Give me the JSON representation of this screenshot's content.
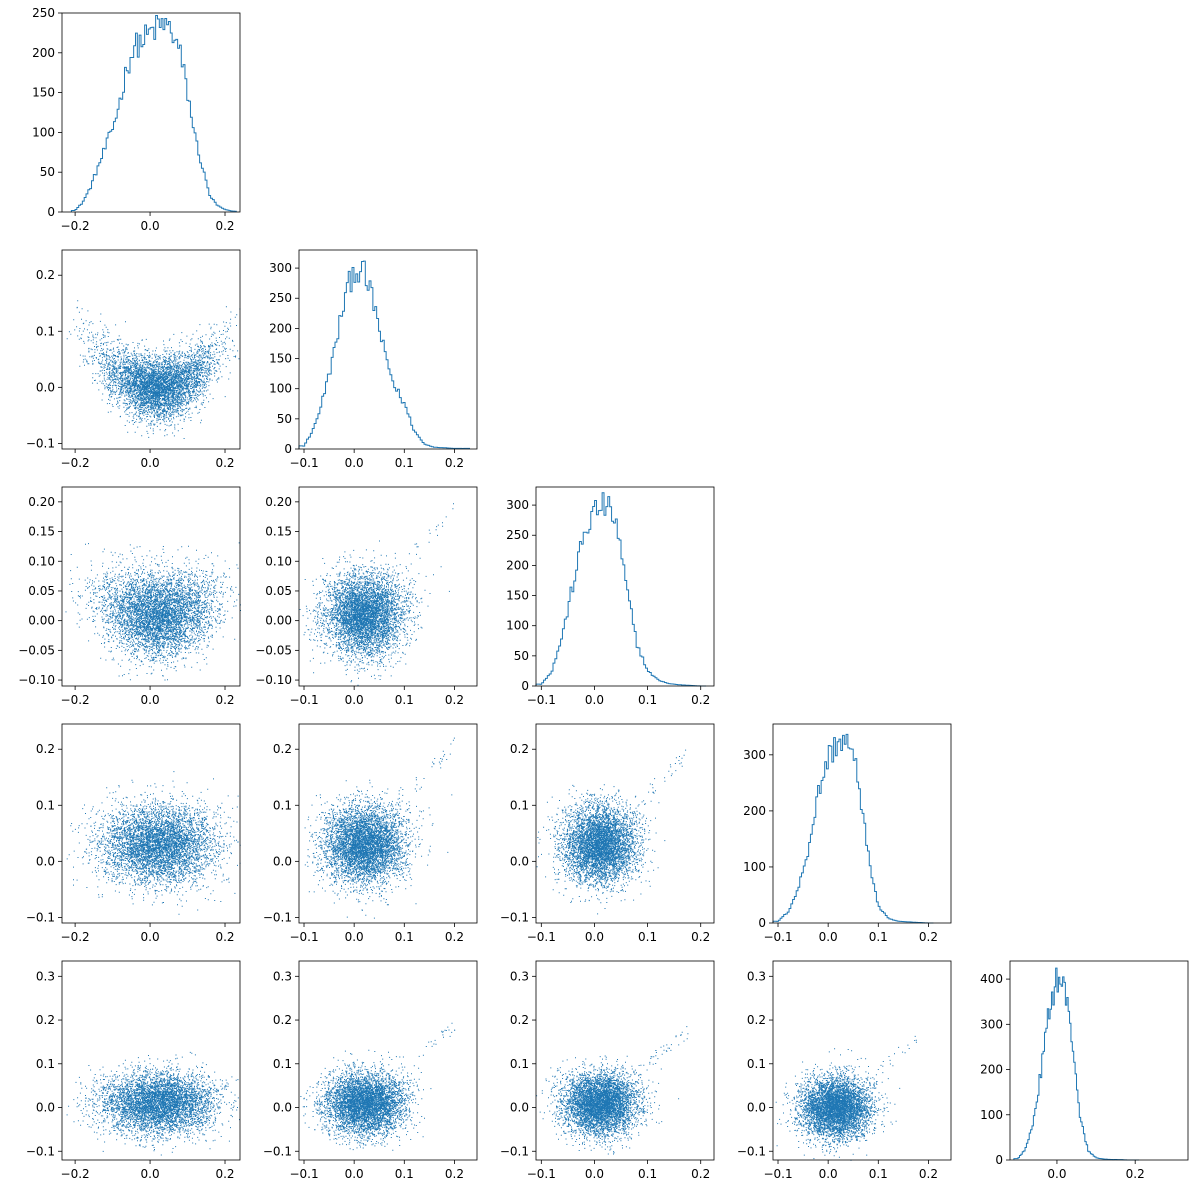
{
  "chart_data": {
    "type": "corner_plot",
    "n_samples": 10000,
    "color": "#1f77b4",
    "dimensions": [
      {
        "id": 0,
        "xlim": [
          -0.235,
          0.24
        ],
        "xticks": [
          "-0.2",
          "0.0",
          "0.2"
        ],
        "xtick_values": [
          -0.2,
          0.0,
          0.2
        ]
      },
      {
        "id": 1,
        "xlim": [
          -0.11,
          0.245
        ],
        "xticks": [
          "-0.1",
          "0.0",
          "0.1",
          "0.2"
        ],
        "xtick_values": [
          -0.1,
          0.0,
          0.1,
          0.2
        ]
      },
      {
        "id": 2,
        "xlim": [
          -0.11,
          0.225
        ],
        "xticks": [
          "-0.1",
          "0.0",
          "0.1",
          "0.2"
        ],
        "xtick_values": [
          -0.1,
          0.0,
          0.1,
          0.2
        ]
      },
      {
        "id": 3,
        "xlim": [
          -0.11,
          0.245
        ],
        "xticks": [
          "-0.1",
          "0.0",
          "0.1",
          "0.2"
        ],
        "xtick_values": [
          -0.1,
          0.0,
          0.1,
          0.2
        ]
      },
      {
        "id": 4,
        "xlim": [
          -0.12,
          0.335
        ],
        "xticks": [
          "0.0",
          "0.2"
        ],
        "xtick_values": [
          0.0,
          0.2
        ]
      }
    ],
    "row_ylims": [
      {
        "row": 1,
        "ylim": [
          -0.11,
          0.245
        ],
        "yticks": [
          "-0.1",
          "0.0",
          "0.1",
          "0.2"
        ],
        "ytick_values": [
          -0.1,
          0.0,
          0.1,
          0.2
        ]
      },
      {
        "row": 2,
        "ylim": [
          -0.11,
          0.225
        ],
        "yticks": [
          "-0.10",
          "-0.05",
          "0.00",
          "0.05",
          "0.10",
          "0.15",
          "0.20"
        ],
        "ytick_values": [
          -0.1,
          -0.05,
          0.0,
          0.05,
          0.1,
          0.15,
          0.2
        ]
      },
      {
        "row": 3,
        "ylim": [
          -0.11,
          0.245
        ],
        "yticks": [
          "-0.1",
          "0.0",
          "0.1",
          "0.2"
        ],
        "ytick_values": [
          -0.1,
          0.0,
          0.1,
          0.2
        ]
      },
      {
        "row": 4,
        "ylim": [
          -0.12,
          0.335
        ],
        "yticks": [
          "-0.1",
          "0.0",
          "0.1",
          "0.2",
          "0.3"
        ],
        "ytick_values": [
          -0.1,
          0.0,
          0.1,
          0.2,
          0.3
        ]
      }
    ],
    "histograms": [
      {
        "dim": 0,
        "ylim": [
          0,
          250
        ],
        "yticks": [
          "0",
          "50",
          "100",
          "150",
          "200",
          "250"
        ],
        "ytick_values": [
          0,
          50,
          100,
          150,
          200,
          250
        ],
        "x": [
          -0.2,
          -0.18,
          -0.16,
          -0.14,
          -0.12,
          -0.1,
          -0.08,
          -0.06,
          -0.04,
          -0.02,
          0.0,
          0.02,
          0.04,
          0.06,
          0.08,
          0.1,
          0.12,
          0.14,
          0.16,
          0.18,
          0.2,
          0.22
        ],
        "counts": [
          2,
          12,
          30,
          55,
          80,
          105,
          140,
          185,
          208,
          215,
          225,
          232,
          236,
          225,
          200,
          150,
          95,
          55,
          20,
          8,
          3,
          1
        ]
      },
      {
        "dim": 1,
        "ylim": [
          0,
          330
        ],
        "yticks": [
          "0",
          "50",
          "100",
          "150",
          "200",
          "250",
          "300"
        ],
        "ytick_values": [
          0,
          50,
          100,
          150,
          200,
          250,
          300
        ],
        "x": [
          -0.1,
          -0.08,
          -0.06,
          -0.04,
          -0.02,
          0.0,
          0.02,
          0.04,
          0.06,
          0.08,
          0.1,
          0.12,
          0.14,
          0.16,
          0.18,
          0.2,
          0.22
        ],
        "counts": [
          5,
          35,
          90,
          160,
          245,
          300,
          290,
          240,
          160,
          105,
          75,
          30,
          8,
          3,
          2,
          1,
          1
        ]
      },
      {
        "dim": 2,
        "ylim": [
          0,
          330
        ],
        "yticks": [
          "0",
          "50",
          "100",
          "150",
          "200",
          "250",
          "300"
        ],
        "ytick_values": [
          0,
          50,
          100,
          150,
          200,
          250,
          300
        ],
        "x": [
          -0.1,
          -0.08,
          -0.06,
          -0.04,
          -0.02,
          0.0,
          0.02,
          0.04,
          0.06,
          0.08,
          0.1,
          0.12,
          0.14,
          0.16,
          0.18,
          0.2
        ],
        "counts": [
          3,
          25,
          85,
          170,
          250,
          290,
          300,
          275,
          165,
          70,
          25,
          10,
          4,
          2,
          1,
          0
        ]
      },
      {
        "dim": 3,
        "ylim": [
          0,
          355
        ],
        "yticks": [
          "0",
          "100",
          "200",
          "300"
        ],
        "ytick_values": [
          0,
          100,
          200,
          300
        ],
        "x": [
          -0.1,
          -0.08,
          -0.06,
          -0.04,
          -0.02,
          0.0,
          0.02,
          0.04,
          0.06,
          0.08,
          0.1,
          0.12,
          0.14,
          0.16,
          0.18,
          0.2
        ],
        "counts": [
          3,
          20,
          60,
          130,
          230,
          295,
          325,
          320,
          260,
          120,
          30,
          8,
          3,
          2,
          1,
          0
        ]
      },
      {
        "dim": 4,
        "ylim": [
          0,
          440
        ],
        "yticks": [
          "0",
          "100",
          "200",
          "300",
          "400"
        ],
        "ytick_values": [
          0,
          100,
          200,
          300,
          400
        ],
        "x": [
          -0.1,
          -0.08,
          -0.06,
          -0.04,
          -0.02,
          0.0,
          0.02,
          0.04,
          0.06,
          0.08,
          0.1,
          0.12,
          0.14,
          0.16,
          0.18,
          0.2
        ],
        "counts": [
          3,
          25,
          85,
          200,
          330,
          405,
          380,
          260,
          90,
          20,
          5,
          2,
          1,
          1,
          0,
          0
        ]
      }
    ],
    "scatter_panels": [
      {
        "row": 1,
        "col": 0,
        "shape": "u",
        "a": 2.2,
        "mx": 0.02,
        "sx": 0.075,
        "my": 0.0,
        "sy": 0.028
      },
      {
        "row": 2,
        "col": 0,
        "shape": "u",
        "a": 1.0,
        "mx": 0.02,
        "sx": 0.075,
        "my": 0.01,
        "sy": 0.035
      },
      {
        "row": 2,
        "col": 1,
        "shape": "tail",
        "a": 2.8,
        "mx": 0.02,
        "sx": 0.04,
        "my": 0.01,
        "sy": 0.035
      },
      {
        "row": 3,
        "col": 0,
        "shape": "flat",
        "a": 0.0,
        "mx": 0.02,
        "sx": 0.075,
        "my": 0.03,
        "sy": 0.035
      },
      {
        "row": 3,
        "col": 1,
        "shape": "tail",
        "a": 1.5,
        "mx": 0.02,
        "sx": 0.04,
        "my": 0.03,
        "sy": 0.035
      },
      {
        "row": 3,
        "col": 2,
        "shape": "tail",
        "a": 1.2,
        "mx": 0.01,
        "sx": 0.035,
        "my": 0.03,
        "sy": 0.035
      },
      {
        "row": 4,
        "col": 0,
        "shape": "flat",
        "a": 0.0,
        "mx": 0.02,
        "sx": 0.075,
        "my": 0.01,
        "sy": 0.035
      },
      {
        "row": 4,
        "col": 1,
        "shape": "tail",
        "a": 1.2,
        "mx": 0.02,
        "sx": 0.04,
        "my": 0.01,
        "sy": 0.035
      },
      {
        "row": 4,
        "col": 2,
        "shape": "tail",
        "a": 1.1,
        "mx": 0.01,
        "sx": 0.035,
        "my": 0.01,
        "sy": 0.035
      },
      {
        "row": 4,
        "col": 3,
        "shape": "tail",
        "a": 1.3,
        "mx": 0.015,
        "sx": 0.035,
        "my": 0.0,
        "sy": 0.035
      }
    ]
  }
}
